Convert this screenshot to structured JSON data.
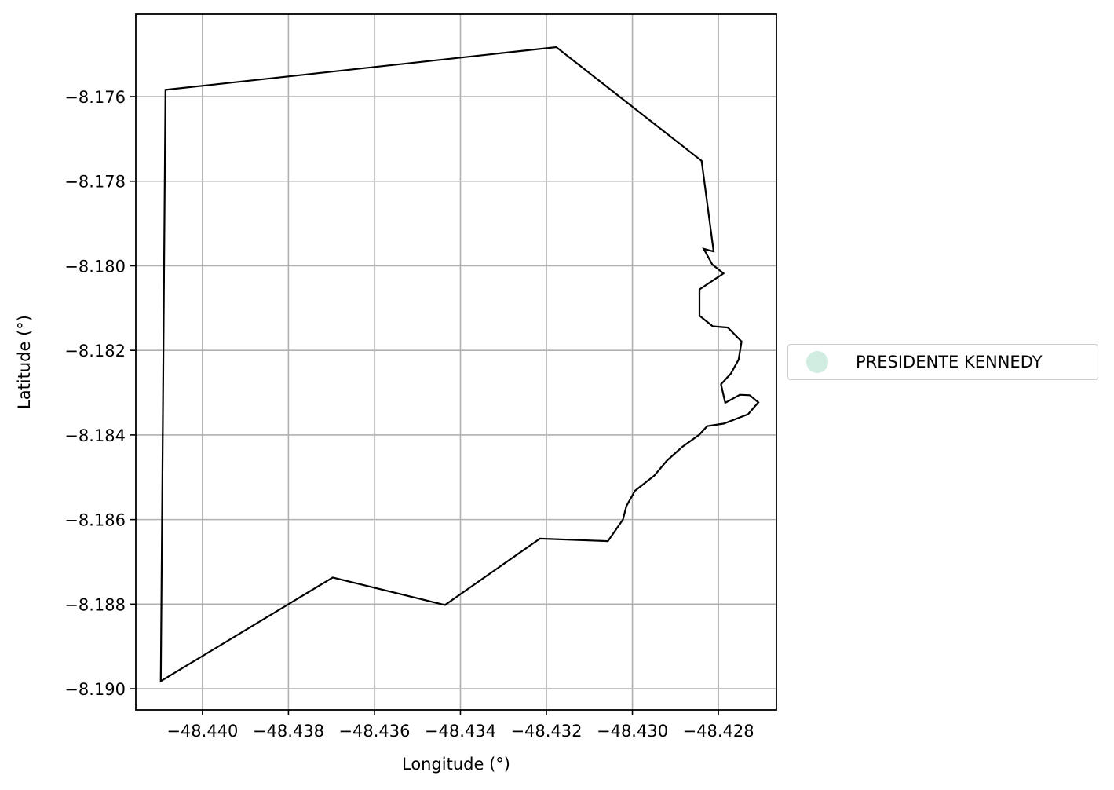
{
  "chart_data": {
    "type": "map",
    "xlabel": "Longitude (°)",
    "ylabel": "Latitude (°)",
    "xlim": [
      -48.44155,
      -48.42665
    ],
    "ylim": [
      -8.1905,
      -8.17405
    ],
    "x_ticks": [
      -48.44,
      -48.438,
      -48.436,
      -48.434,
      -48.432,
      -48.43,
      -48.428
    ],
    "x_tick_labels": [
      "−48.440",
      "−48.438",
      "−48.436",
      "−48.434",
      "−48.432",
      "−48.430",
      "−48.428"
    ],
    "y_ticks": [
      -8.176,
      -8.178,
      -8.18,
      -8.182,
      -8.184,
      -8.186,
      -8.188,
      -8.19
    ],
    "y_tick_labels": [
      "−8.176",
      "−8.178",
      "−8.180",
      "−8.182",
      "−8.184",
      "−8.186",
      "−8.188",
      "−8.190"
    ],
    "grid": true,
    "legend_position": "right",
    "legend": [
      {
        "label": "PRESIDENTE KENNEDY",
        "color": "#d1ece0"
      }
    ],
    "boundary_color": "#000000",
    "boundary": [
      [
        -48.44086,
        -8.17584
      ],
      [
        -48.43177,
        -8.17483
      ],
      [
        -48.42839,
        -8.17752
      ],
      [
        -48.42811,
        -8.17966
      ],
      [
        -48.42834,
        -8.1796
      ],
      [
        -48.42814,
        -8.17997
      ],
      [
        -48.42788,
        -8.18018
      ],
      [
        -48.42844,
        -8.18056
      ],
      [
        -48.42844,
        -8.18118
      ],
      [
        -48.42813,
        -8.18143
      ],
      [
        -48.42778,
        -8.18146
      ],
      [
        -48.42746,
        -8.18179
      ],
      [
        -48.42753,
        -8.18222
      ],
      [
        -48.42771,
        -8.18255
      ],
      [
        -48.42794,
        -8.1828
      ],
      [
        -48.42784,
        -8.18324
      ],
      [
        -48.4275,
        -8.18305
      ],
      [
        -48.42727,
        -8.18306
      ],
      [
        -48.42707,
        -8.18323
      ],
      [
        -48.42731,
        -8.18351
      ],
      [
        -48.42787,
        -8.18373
      ],
      [
        -48.42826,
        -8.18379
      ],
      [
        -48.42844,
        -8.18399
      ],
      [
        -48.42885,
        -8.18429
      ],
      [
        -48.4292,
        -8.18461
      ],
      [
        -48.42949,
        -8.18496
      ],
      [
        -48.42994,
        -8.18532
      ],
      [
        -48.43014,
        -8.18568
      ],
      [
        -48.43021,
        -8.18596
      ],
      [
        -48.43022,
        -8.186
      ],
      [
        -48.43057,
        -8.18651
      ],
      [
        -48.43215,
        -8.18645
      ],
      [
        -48.43436,
        -8.18802
      ],
      [
        -48.43697,
        -8.18737
      ],
      [
        -48.44097,
        -8.18982
      ],
      [
        -48.44086,
        -8.17584
      ]
    ]
  }
}
